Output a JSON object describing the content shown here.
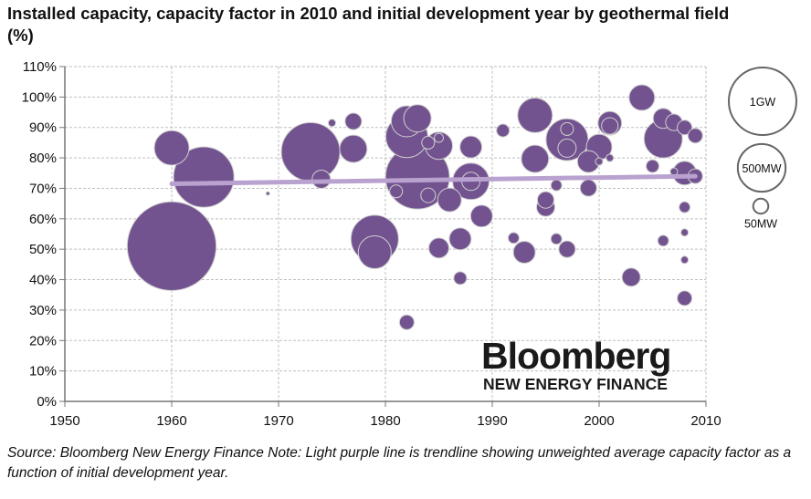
{
  "title": "Installed capacity, capacity factor in 2010 and initial development year by geothermal field (%)",
  "source": "Source: Bloomberg New Energy Finance Note: Light purple line is trendline showing unweighted average capacity factor as a function of initial development year.",
  "logo": {
    "line1": "Bloomberg",
    "line2": "NEW ENERGY FINANCE"
  },
  "colors": {
    "bubble": "#72538f",
    "bubble_stroke": "#cfcfcf",
    "trend": "#b9a2cf",
    "grid": "#bfbfbf"
  },
  "chart_data": {
    "type": "bubble",
    "title": "Installed capacity, capacity factor in 2010 and initial development year by geothermal field (%)",
    "xlim": [
      1950,
      2010
    ],
    "ylim": [
      0,
      110
    ],
    "x_ticks": [
      "1950",
      "1960",
      "1970",
      "1980",
      "1990",
      "2000",
      "2010"
    ],
    "y_ticks": [
      "0%",
      "10%",
      "20%",
      "30%",
      "40%",
      "50%",
      "60%",
      "70%",
      "80%",
      "90%",
      "100%",
      "110%"
    ],
    "grid": true,
    "size_legend": [
      {
        "label": "1GW",
        "mw": 1000
      },
      {
        "label": "500MW",
        "mw": 500
      },
      {
        "label": "50MW",
        "mw": 50
      }
    ],
    "legend_position": "right",
    "trendline": {
      "x": [
        1960,
        2009
      ],
      "y": [
        71.5,
        74
      ]
    },
    "points_fields": [
      "year",
      "capacity_factor_pct",
      "capacity_mw"
    ],
    "points": [
      [
        1960,
        51,
        1730
      ],
      [
        1960,
        83.3,
        264
      ],
      [
        1963,
        73.7,
        800
      ],
      [
        1969,
        68.3,
        3
      ],
      [
        1973,
        82,
        750
      ],
      [
        1974,
        73,
        73
      ],
      [
        1975,
        91.5,
        12
      ],
      [
        1977,
        92,
        60
      ],
      [
        1977,
        83,
        164
      ],
      [
        1979,
        53.4,
        494
      ],
      [
        1979,
        49,
        237
      ],
      [
        1982,
        26,
        47
      ],
      [
        1982,
        92,
        211
      ],
      [
        1983,
        93,
        164
      ],
      [
        1982,
        87,
        386
      ],
      [
        1983,
        73.7,
        895
      ],
      [
        1981,
        69,
        36
      ],
      [
        1984,
        67.7,
        47
      ],
      [
        1984,
        85,
        36
      ],
      [
        1985,
        84,
        164
      ],
      [
        1985,
        86.6,
        18
      ],
      [
        1988,
        83.6,
        105
      ],
      [
        1988,
        72.3,
        292
      ],
      [
        1988,
        72.3,
        73
      ],
      [
        1986,
        66.2,
        123
      ],
      [
        1989,
        60.9,
        105
      ],
      [
        1987,
        53.4,
        105
      ],
      [
        1985,
        50.4,
        88
      ],
      [
        1987,
        40.5,
        36
      ],
      [
        1991,
        89,
        36
      ],
      [
        1994,
        94,
        264
      ],
      [
        1994,
        79.7,
        164
      ],
      [
        1997,
        86,
        386
      ],
      [
        1997,
        83.2,
        73
      ],
      [
        1997,
        89.5,
        36
      ],
      [
        1999,
        78.8,
        105
      ],
      [
        2000,
        83.6,
        143
      ],
      [
        2001,
        91.4,
        123
      ],
      [
        2001,
        90.5,
        60
      ],
      [
        2000,
        78.8,
        12
      ],
      [
        2001,
        80,
        12
      ],
      [
        1996,
        71,
        26
      ],
      [
        1999,
        70.1,
        60
      ],
      [
        1995,
        66.2,
        60
      ],
      [
        1995,
        63.8,
        73
      ],
      [
        1992,
        53.7,
        26
      ],
      [
        1993,
        49,
        105
      ],
      [
        1996,
        53.4,
        26
      ],
      [
        1997,
        50,
        60
      ],
      [
        2004,
        99.8,
        143
      ],
      [
        2006,
        86.3,
        322
      ],
      [
        2006,
        93,
        88
      ],
      [
        2007,
        91.7,
        60
      ],
      [
        2008,
        90,
        47
      ],
      [
        2009,
        87.3,
        47
      ],
      [
        2005,
        77.3,
        36
      ],
      [
        2008,
        75,
        123
      ],
      [
        2009,
        74,
        47
      ],
      [
        2007,
        75.5,
        12
      ],
      [
        2008,
        63.8,
        26
      ],
      [
        2008,
        55.5,
        12
      ],
      [
        2006,
        52.8,
        26
      ],
      [
        2008,
        46.5,
        12
      ],
      [
        2003,
        40.8,
        73
      ],
      [
        2008,
        33.9,
        47
      ]
    ]
  }
}
